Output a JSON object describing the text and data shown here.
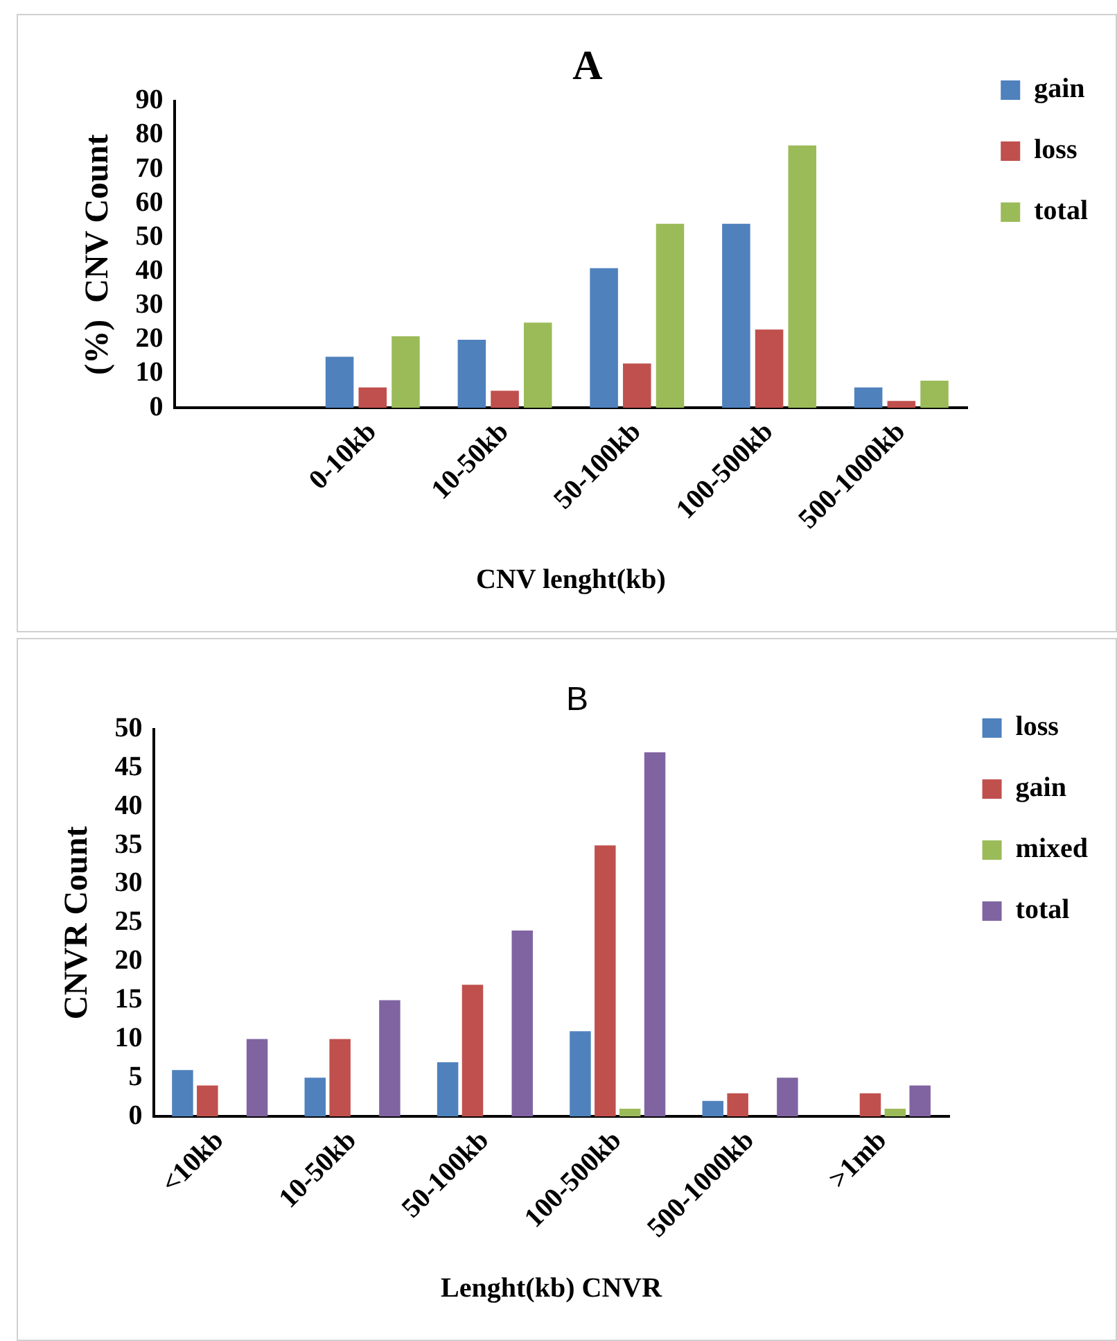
{
  "chart_data": [
    {
      "type": "bar",
      "title": "A",
      "xlabel": "CNV lenght(kb)",
      "ylabel": "(%)  CNV Count",
      "categories": [
        null,
        "0-10kb",
        "10-50kb",
        "50-100kb",
        "100-500kb",
        "500-1000kb"
      ],
      "series": [
        {
          "name": "gain",
          "color": "#4f81bd",
          "values": [
            null,
            15,
            20,
            41,
            54,
            6
          ]
        },
        {
          "name": "loss",
          "color": "#c0504d",
          "values": [
            null,
            6,
            5,
            13,
            23,
            2
          ]
        },
        {
          "name": "total",
          "color": "#9bbb59",
          "values": [
            null,
            21,
            25,
            54,
            77,
            8
          ]
        }
      ],
      "ylim": [
        0,
        90
      ],
      "yticks": [
        0,
        10,
        20,
        30,
        40,
        50,
        60,
        70,
        80,
        90
      ],
      "grid": false,
      "legend": "right"
    },
    {
      "type": "bar",
      "title": "B",
      "xlabel": "Lenght(kb) CNVR",
      "ylabel": "CNVR Count",
      "categories": [
        "<10kb",
        "10-50kb",
        "50-100kb",
        "100-500kb",
        "500-1000kb",
        ">1mb"
      ],
      "series": [
        {
          "name": "loss",
          "color": "#4f81bd",
          "values": [
            6,
            5,
            7,
            11,
            2,
            0
          ]
        },
        {
          "name": "gain",
          "color": "#c0504d",
          "values": [
            4,
            10,
            17,
            35,
            3,
            3
          ]
        },
        {
          "name": "mixed",
          "color": "#9bbb59",
          "values": [
            0,
            0,
            0,
            1,
            0,
            1
          ]
        },
        {
          "name": "total",
          "color": "#8064a2",
          "values": [
            10,
            15,
            24,
            47,
            5,
            4
          ]
        }
      ],
      "ylim": [
        0,
        50
      ],
      "yticks": [
        0,
        5,
        10,
        15,
        20,
        25,
        30,
        35,
        40,
        45,
        50
      ],
      "grid": false,
      "legend": "top right"
    }
  ]
}
